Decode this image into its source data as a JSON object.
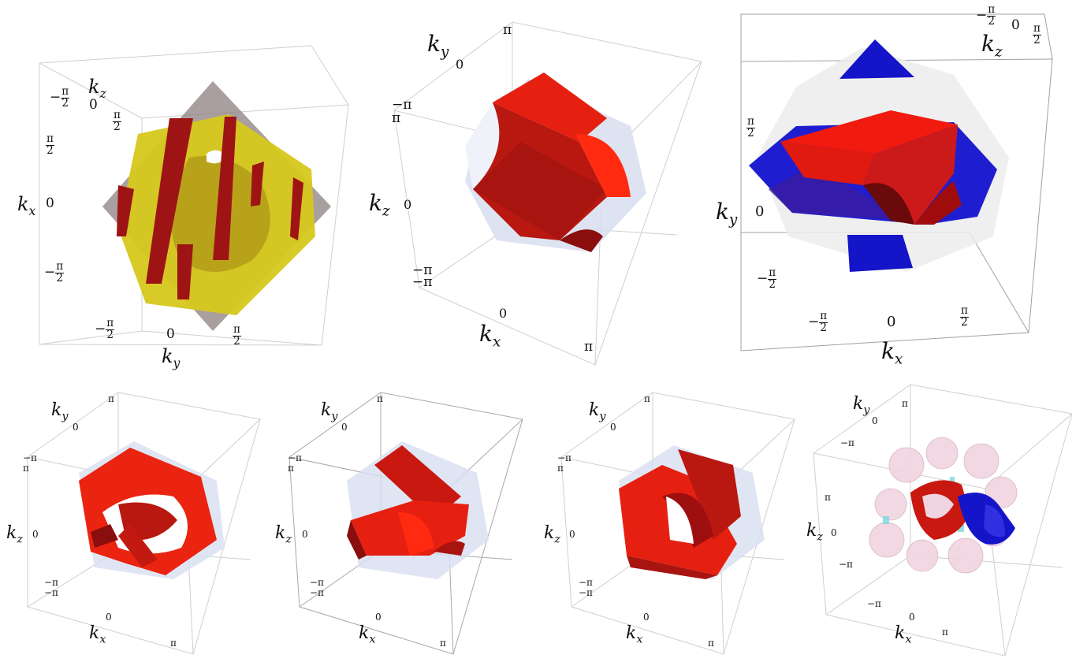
{
  "axis_labels": {
    "kx": "k",
    "ky": "k",
    "kz": "k",
    "sub_x": "x",
    "sub_y": "y",
    "sub_z": "z"
  },
  "ticks": {
    "neg_pi": "−π",
    "zero": "0",
    "pi": "π",
    "neg_half_pi_sign": "−",
    "half_pi_num": "π",
    "half_pi_den": "2"
  },
  "colors": {
    "red": "#e62010",
    "dark_red": "#9e0f0f",
    "blue": "#1414c8",
    "yellow": "#d6c81c",
    "gray_bz": "#8c7f7f",
    "blue_bz": "#d8def0",
    "pink": "#f0d4e0"
  }
}
